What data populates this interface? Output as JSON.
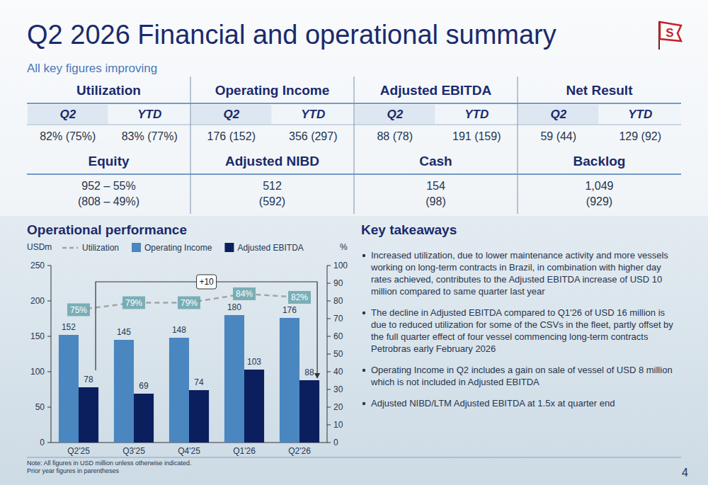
{
  "title": "Q2 2026 Financial and operational summary",
  "subtitle": "All key figures improving",
  "logo_text": "S",
  "kpis": [
    {
      "name": "Utilization",
      "cells": [
        {
          "head": "Q2",
          "value": "82% (75%)"
        },
        {
          "head": "YTD",
          "value": "83% (77%)"
        }
      ]
    },
    {
      "name": "Operating Income",
      "cells": [
        {
          "head": "Q2",
          "value": "176 (152)"
        },
        {
          "head": "YTD",
          "value": "356 (297)"
        }
      ]
    },
    {
      "name": "Adjusted EBITDA",
      "cells": [
        {
          "head": "Q2",
          "value": "88 (78)"
        },
        {
          "head": "YTD",
          "value": "191 (159)"
        }
      ]
    },
    {
      "name": "Net Result",
      "cells": [
        {
          "head": "Q2",
          "value": "59 (44)"
        },
        {
          "head": "YTD",
          "value": "129 (92)"
        }
      ]
    }
  ],
  "balance": [
    {
      "name": "Equity",
      "lines": [
        "952 – 55%",
        "(808 – 49%)"
      ]
    },
    {
      "name": "Adjusted NIBD",
      "lines": [
        "512",
        "(592)"
      ]
    },
    {
      "name": "Cash",
      "lines": [
        "154",
        "(98)"
      ]
    },
    {
      "name": "Backlog",
      "lines": [
        "1,049",
        "(929)"
      ]
    }
  ],
  "chart_data": {
    "type": "bar",
    "title": "Operational performance",
    "ylabel": "USDm",
    "y2label": "%",
    "categories": [
      "Q2'25",
      "Q3'25",
      "Q4'25",
      "Q1'26",
      "Q2'26"
    ],
    "series": [
      {
        "name": "Utilization",
        "type": "line",
        "line_style": "dashed",
        "color": "#a3a3a3",
        "axis": "y2",
        "values": [
          75,
          79,
          79,
          84,
          82
        ],
        "value_labels": [
          "75%",
          "79%",
          "79%",
          "84%",
          "82%"
        ]
      },
      {
        "name": "Operating Income",
        "type": "bar",
        "color": "#4a86c0",
        "values": [
          152,
          145,
          148,
          180,
          176
        ]
      },
      {
        "name": "Adjusted EBITDA",
        "type": "bar",
        "color": "#0b1f5e",
        "values": [
          78,
          69,
          74,
          103,
          88
        ]
      }
    ],
    "ylim": [
      0,
      250
    ],
    "yticks": [
      0,
      50,
      100,
      150,
      200,
      250
    ],
    "y2lim": [
      0,
      100
    ],
    "y2ticks": [
      0,
      10,
      20,
      30,
      40,
      50,
      60,
      70,
      80,
      90,
      100
    ],
    "annotation": "+10",
    "data_labels": true,
    "grid": false,
    "legend": "top"
  },
  "takeaways_title": "Key takeaways",
  "takeaways": [
    "Increased utilization, due to lower maintenance activity and more vessels working on long-term contracts in Brazil, in combination with higher day rates achieved, contributes to the Adjusted EBITDA increase of USD 10 million compared to same quarter last year",
    "The decline in Adjusted EBITDA compared to Q1'26 of USD 16 million is due to reduced utilization for some of the CSVs in the fleet, partly offset by the full quarter effect of four vessel commencing long-term contracts Petrobras early February 2026",
    "Operating Income in Q2 includes a gain on sale of vessel of USD 8 million which is not included in Adjusted EBITDA",
    "Adjusted NIBD/LTM Adjusted EBITDA at 1.5x at quarter end"
  ],
  "note": [
    "Note: All figures in USD million unless otherwise indicated.",
    "Prior year figures in parentheses"
  ],
  "page_number": "4"
}
